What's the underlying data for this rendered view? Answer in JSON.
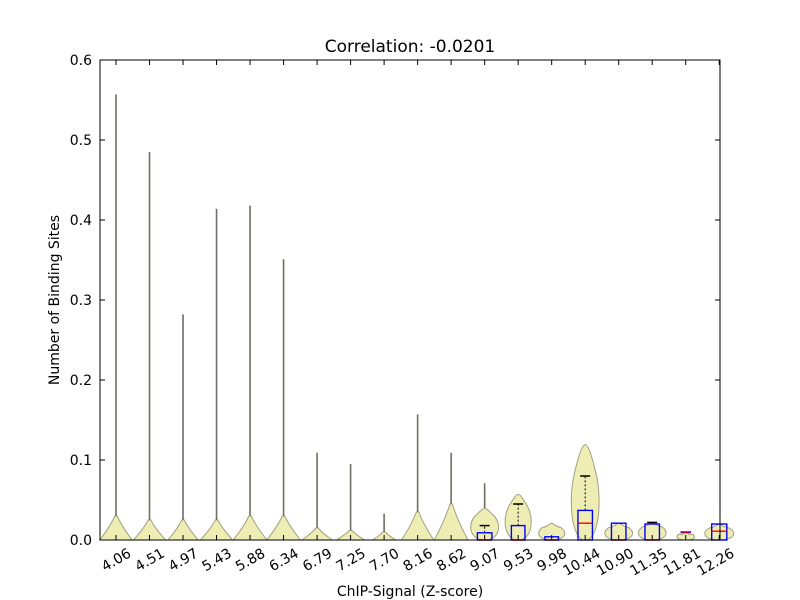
{
  "chart_data": {
    "type": "violin",
    "title": "Correlation: -0.0201",
    "xlabel": "ChIP-Signal (Z-score)",
    "ylabel": "Number of Binding Sites",
    "ylim": [
      0,
      0.6
    ],
    "yticks": [
      "0.0",
      "0.1",
      "0.2",
      "0.3",
      "0.4",
      "0.5",
      "0.6"
    ],
    "grid": false,
    "colors": {
      "violin_fill": "#eeeeb4",
      "violin_edge": "#a0a080",
      "spike": "#6e6e62",
      "box": "#0000ff",
      "median": "#ff0000",
      "whisker": "#000000"
    },
    "categories": [
      "4.06",
      "4.51",
      "4.97",
      "5.43",
      "5.88",
      "6.34",
      "6.79",
      "7.25",
      "7.70",
      "8.16",
      "8.62",
      "9.07",
      "9.53",
      "9.98",
      "10.44",
      "10.90",
      "11.35",
      "11.81",
      "12.26"
    ],
    "series": [
      {
        "x": "4.06",
        "max": 0.557,
        "body_max": 0.03,
        "half_width": 0.48
      },
      {
        "x": "4.51",
        "max": 0.485,
        "body_max": 0.025,
        "half_width": 0.48
      },
      {
        "x": "4.97",
        "max": 0.282,
        "body_max": 0.025,
        "half_width": 0.45
      },
      {
        "x": "5.43",
        "max": 0.414,
        "body_max": 0.025,
        "half_width": 0.48
      },
      {
        "x": "5.88",
        "max": 0.418,
        "body_max": 0.03,
        "half_width": 0.5
      },
      {
        "x": "6.34",
        "max": 0.351,
        "body_max": 0.03,
        "half_width": 0.5
      },
      {
        "x": "6.79",
        "max": 0.109,
        "body_max": 0.015,
        "half_width": 0.45
      },
      {
        "x": "7.25",
        "max": 0.095,
        "body_max": 0.012,
        "half_width": 0.42
      },
      {
        "x": "7.70",
        "max": 0.033,
        "body_max": 0.01,
        "half_width": 0.35
      },
      {
        "x": "8.16",
        "max": 0.157,
        "body_max": 0.035,
        "half_width": 0.48
      },
      {
        "x": "8.62",
        "max": 0.109,
        "body_max": 0.045,
        "half_width": 0.5
      },
      {
        "x": "9.07",
        "max": 0.071,
        "body_max": 0.04,
        "half_width": 0.48,
        "box": {
          "q1": 0.0,
          "q3": 0.009,
          "median": 0.0,
          "whisker_high": 0.018
        }
      },
      {
        "x": "9.53",
        "max": 0.057,
        "body_max": 0.057,
        "half_width": 0.45,
        "box": {
          "q1": 0.0,
          "q3": 0.018,
          "median": 0.0,
          "whisker_high": 0.045
        }
      },
      {
        "x": "9.98",
        "max": 0.021,
        "body_max": 0.021,
        "half_width": 0.45,
        "box": {
          "q1": 0.0,
          "q3": 0.004,
          "median": 0.0,
          "whisker_high": 0.004
        }
      },
      {
        "x": "10.44",
        "max": 0.119,
        "body_max": 0.119,
        "half_width": 0.48,
        "box": {
          "q1": 0.0,
          "q3": 0.037,
          "median": 0.021,
          "whisker_high": 0.08
        }
      },
      {
        "x": "10.90",
        "max": 0.021,
        "body_max": 0.021,
        "half_width": 0.48,
        "box": {
          "q1": 0.0,
          "q3": 0.021,
          "median": 0.0,
          "whisker_high": 0.021
        }
      },
      {
        "x": "11.35",
        "max": 0.022,
        "body_max": 0.022,
        "half_width": 0.48,
        "box": {
          "q1": 0.0,
          "q3": 0.02,
          "median": 0.0,
          "whisker_high": 0.022
        }
      },
      {
        "x": "11.81",
        "max": 0.01,
        "body_max": 0.01,
        "half_width": 0.3,
        "box": {
          "q1": 0.01,
          "q3": 0.01,
          "median": 0.01,
          "whisker_high": 0.01
        }
      },
      {
        "x": "12.26",
        "max": 0.02,
        "body_max": 0.02,
        "half_width": 0.5,
        "box": {
          "q1": 0.0,
          "q3": 0.02,
          "median": 0.011,
          "whisker_high": 0.02
        }
      }
    ]
  }
}
